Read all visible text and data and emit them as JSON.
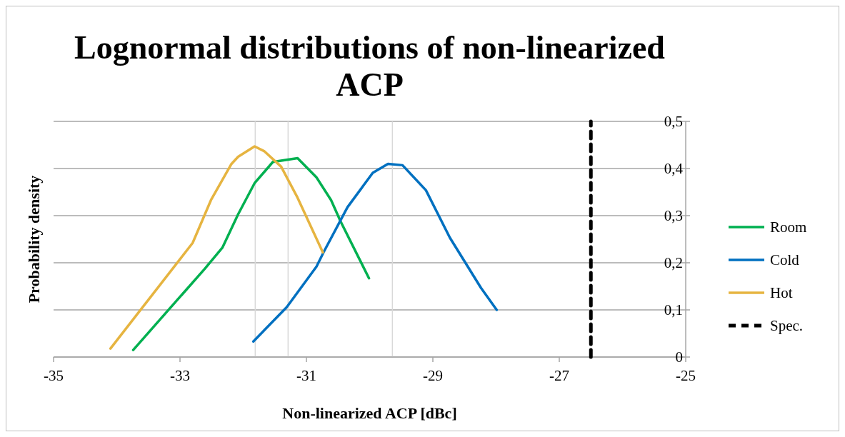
{
  "chart_data": {
    "type": "line",
    "title": "Lognormal distributions of non-linearized ACP",
    "xlabel": "Non-linearized ACP [dBc]",
    "ylabel": "Probability density",
    "xlim": [
      -35,
      -25
    ],
    "xticks": [
      -35,
      -33,
      -31,
      -29,
      -27,
      -25
    ],
    "ylim": [
      0,
      0.5
    ],
    "yticks": [
      0,
      {
        "value": 0.1,
        "label": "0,1"
      },
      {
        "value": 0.2,
        "label": "0,2"
      },
      {
        "value": 0.3,
        "label": "0,3"
      },
      {
        "value": 0.4,
        "label": "0,4"
      },
      {
        "value": 0.5,
        "label": "0,5"
      }
    ],
    "grid": "y",
    "legend": "right",
    "ref_lines": [
      {
        "axis": "x",
        "value": -31.81,
        "color": "#d9d9d9"
      },
      {
        "axis": "x",
        "value": -31.29,
        "color": "#d9d9d9"
      },
      {
        "axis": "x",
        "value": -29.64,
        "color": "#d9d9d9"
      }
    ],
    "series": [
      {
        "name": "Room",
        "color": "#00b050",
        "x": [
          -33.74,
          -32.61,
          -32.33,
          -32.08,
          -31.82,
          -31.53,
          -31.14,
          -30.84,
          -30.61,
          -30.46,
          -30.01
        ],
        "values": [
          0.015,
          0.187,
          0.232,
          0.303,
          0.369,
          0.414,
          0.422,
          0.381,
          0.333,
          0.288,
          0.167
        ]
      },
      {
        "name": "Cold",
        "color": "#0070c0",
        "x": [
          -31.84,
          -31.31,
          -30.84,
          -30.73,
          -30.35,
          -29.95,
          -29.71,
          -29.48,
          -29.11,
          -28.73,
          -28.24,
          -27.99
        ],
        "values": [
          0.033,
          0.106,
          0.192,
          0.222,
          0.318,
          0.391,
          0.41,
          0.407,
          0.354,
          0.253,
          0.147,
          0.1
        ]
      },
      {
        "name": "Hot",
        "color": "#e6b440",
        "x": [
          -34.1,
          -32.8,
          -32.51,
          -32.19,
          -32.08,
          -31.82,
          -31.67,
          -31.4,
          -31.14,
          -30.74
        ],
        "values": [
          0.018,
          0.242,
          0.333,
          0.409,
          0.425,
          0.447,
          0.437,
          0.404,
          0.338,
          0.222
        ]
      },
      {
        "name": "Spec.",
        "color": "#000000",
        "line_style": "dashed",
        "x": [
          -26.5,
          -26.5
        ],
        "values": [
          0,
          0.5
        ]
      }
    ]
  }
}
